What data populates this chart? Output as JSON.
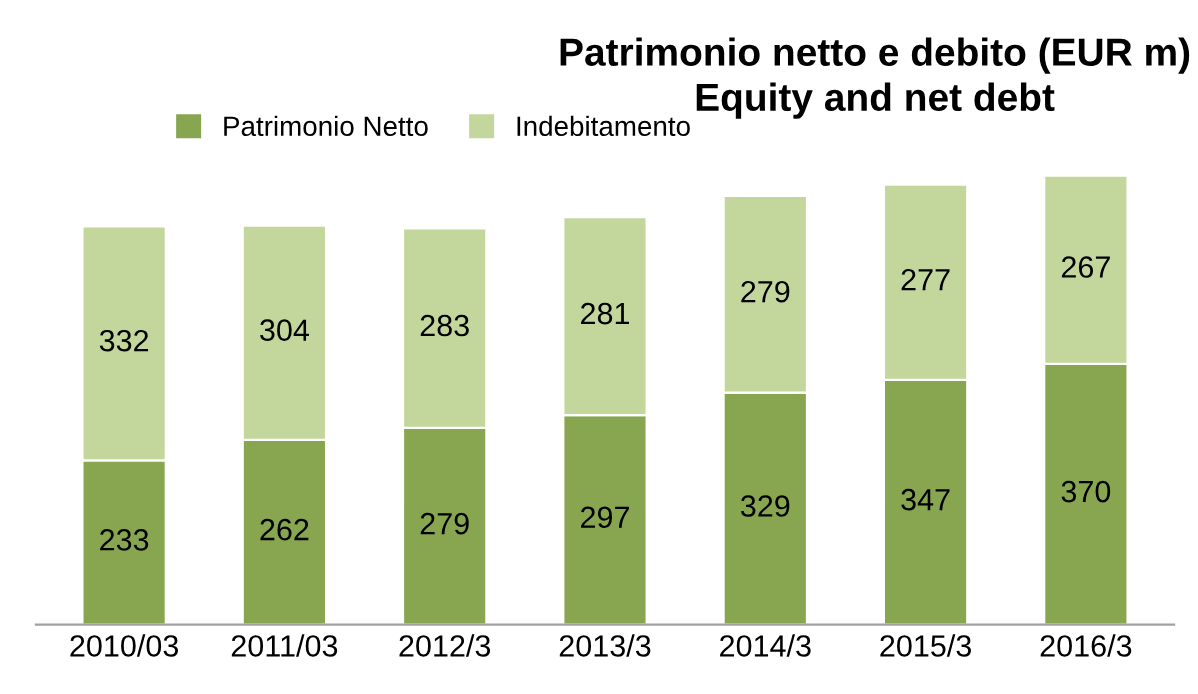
{
  "chart_data": {
    "type": "bar",
    "title": "Patrimonio netto e debito (EUR m)",
    "subtitle": "Equity and net debt",
    "categories": [
      "2010/03",
      "2011/03",
      "2012/3",
      "2013/3",
      "2014/3",
      "2015/3",
      "2016/3"
    ],
    "stacked": true,
    "data_labels": true,
    "legend": "top",
    "grid": false,
    "tick_labels": "x",
    "series": [
      {
        "name": "Patrimonio Netto",
        "color": "#87a64f",
        "values": [
          233,
          262,
          279,
          297,
          329,
          347,
          370
        ]
      },
      {
        "name": "Indebitamento",
        "color": "#c3d69b",
        "values": [
          332,
          304,
          283,
          281,
          279,
          277,
          267
        ]
      }
    ]
  }
}
